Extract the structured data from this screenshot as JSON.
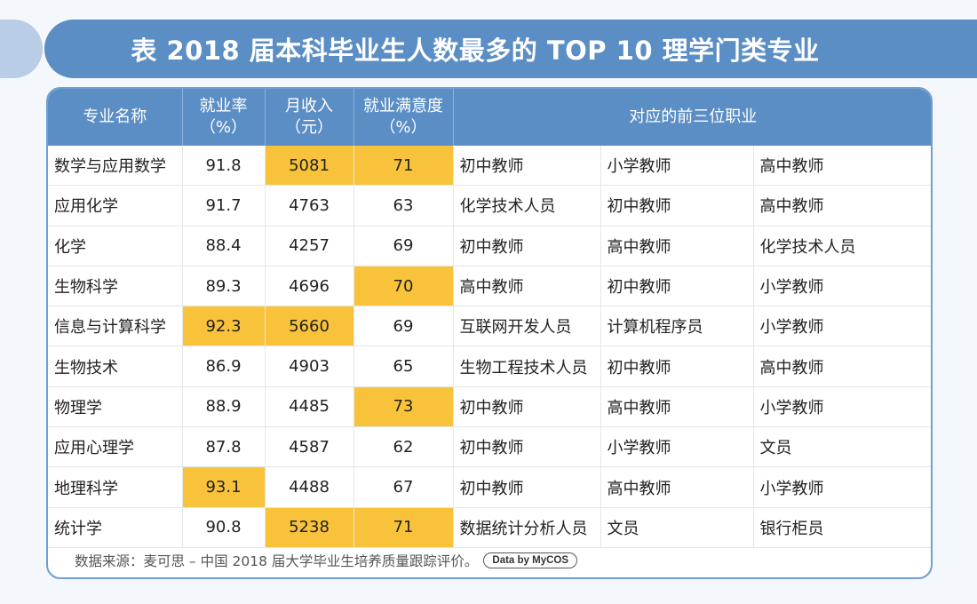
{
  "title": "表  2018 届本科毕业生人数最多的 TOP 10 理学门类专业",
  "columns": {
    "major": "专业名称",
    "employment_rate": "就业率",
    "employment_rate_unit": "（%）",
    "monthly_income": "月收入",
    "monthly_income_unit": "（元）",
    "satisfaction": "就业满意度",
    "satisfaction_unit": "（%）",
    "top3_jobs": "对应的前三位职业"
  },
  "rows": [
    {
      "major": "数学与应用数学",
      "rate": "91.8",
      "income": "5081",
      "satisfaction": "71",
      "job1": "初中教师",
      "job2": "小学教师",
      "job3": "高中教师"
    },
    {
      "major": "应用化学",
      "rate": "91.7",
      "income": "4763",
      "satisfaction": "63",
      "job1": "化学技术人员",
      "job2": "初中教师",
      "job3": "高中教师"
    },
    {
      "major": "化学",
      "rate": "88.4",
      "income": "4257",
      "satisfaction": "69",
      "job1": "初中教师",
      "job2": "高中教师",
      "job3": "化学技术人员"
    },
    {
      "major": "生物科学",
      "rate": "89.3",
      "income": "4696",
      "satisfaction": "70",
      "job1": "高中教师",
      "job2": "初中教师",
      "job3": "小学教师"
    },
    {
      "major": "信息与计算科学",
      "rate": "92.3",
      "income": "5660",
      "satisfaction": "69",
      "job1": "互联网开发人员",
      "job2": "计算机程序员",
      "job3": "小学教师"
    },
    {
      "major": "生物技术",
      "rate": "86.9",
      "income": "4903",
      "satisfaction": "65",
      "job1": "生物工程技术人员",
      "job2": "初中教师",
      "job3": "高中教师"
    },
    {
      "major": "物理学",
      "rate": "88.9",
      "income": "4485",
      "satisfaction": "73",
      "job1": "初中教师",
      "job2": "高中教师",
      "job3": "小学教师"
    },
    {
      "major": "应用心理学",
      "rate": "87.8",
      "income": "4587",
      "satisfaction": "62",
      "job1": "初中教师",
      "job2": "小学教师",
      "job3": "文员"
    },
    {
      "major": "地理科学",
      "rate": "93.1",
      "income": "4488",
      "satisfaction": "67",
      "job1": "初中教师",
      "job2": "高中教师",
      "job3": "小学教师"
    },
    {
      "major": "统计学",
      "rate": "90.8",
      "income": "5238",
      "satisfaction": "71",
      "job1": "数据统计分析人员",
      "job2": "文员",
      "job3": "银行柜员"
    }
  ],
  "highlight_color": "#f8c33a",
  "header_color": "#5b8ec4",
  "footer": {
    "source": "数据来源：麦可思 – 中国 2018 届大学毕业生培养质量跟踪评价。",
    "badge": "Data by MyCOS"
  }
}
